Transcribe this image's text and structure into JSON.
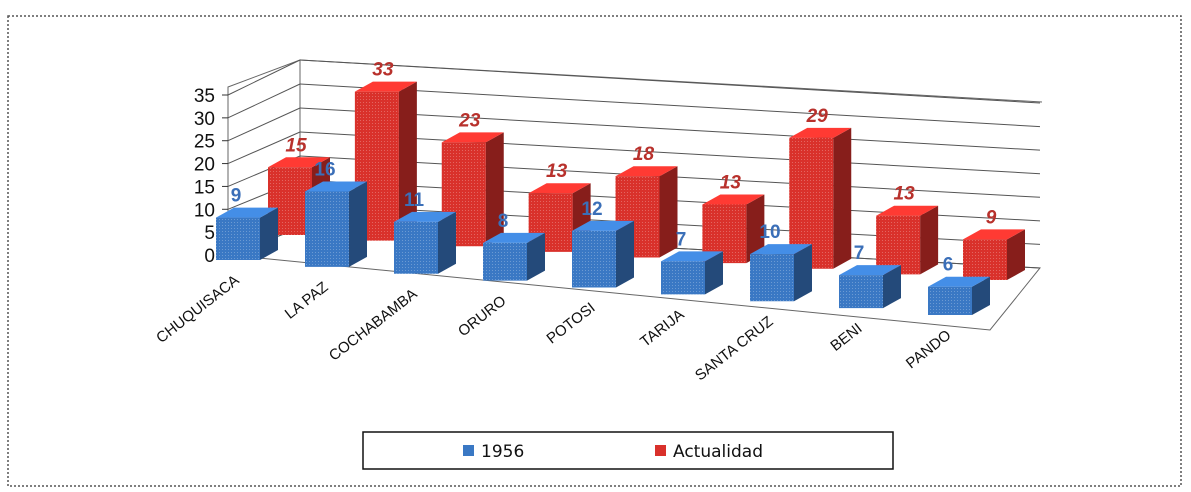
{
  "chart_data": {
    "type": "bar",
    "subtype": "3d-clustered-column",
    "title": "",
    "xlabel": "",
    "ylabel": "",
    "ylim": [
      0,
      35
    ],
    "yticks": [
      0,
      5,
      10,
      15,
      20,
      25,
      30,
      35
    ],
    "grid": true,
    "legend_position": "bottom",
    "categories": [
      "CHUQUISACA",
      "LA PAZ",
      "COCHABAMBA",
      "ORURO",
      "POTOSI",
      "TARIJA",
      "SANTA CRUZ",
      "BENI",
      "PANDO"
    ],
    "series": [
      {
        "name": "1956",
        "color": "#3a78c4",
        "label_color": "#3b6fb8",
        "values": [
          9,
          16,
          11,
          8,
          12,
          7,
          10,
          7,
          6
        ]
      },
      {
        "name": "Actualidad",
        "color": "#d9312b",
        "label_color": "#b8312c",
        "values": [
          15,
          33,
          23,
          13,
          18,
          13,
          29,
          13,
          9
        ]
      }
    ]
  }
}
